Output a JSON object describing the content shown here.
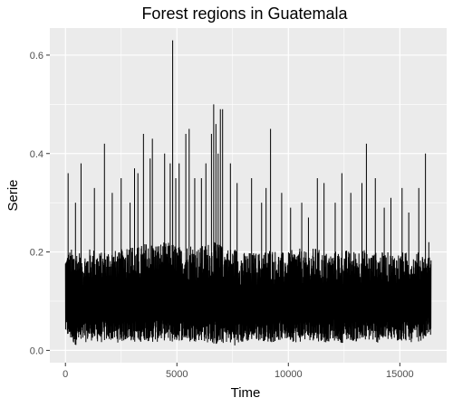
{
  "chart_data": {
    "type": "line",
    "title": "Forest regions in Guatemala",
    "xlabel": "Time",
    "ylabel": "Serie",
    "xlim": [
      -700,
      17100
    ],
    "ylim": [
      -0.025,
      0.655
    ],
    "x_ticks": [
      0,
      5000,
      10000,
      15000
    ],
    "x_tick_labels": [
      "0",
      "5000",
      "10000",
      "15000"
    ],
    "y_ticks": [
      0.0,
      0.2,
      0.4,
      0.6
    ],
    "y_tick_labels": [
      "0.0",
      "0.2",
      "0.4",
      "0.6"
    ],
    "grid": true,
    "legend": "none",
    "colors": {
      "panel": "#ebebeb",
      "grid": "#ffffff",
      "line": "#000000"
    },
    "series": [
      {
        "x_start": 1,
        "x_end": 16400,
        "band": [
          [
            1,
            0.03,
            0.2
          ],
          [
            400,
            0.01,
            0.21
          ],
          [
            800,
            0.015,
            0.2
          ],
          [
            1200,
            0.02,
            0.21
          ],
          [
            1600,
            0.015,
            0.2
          ],
          [
            2000,
            0.02,
            0.21
          ],
          [
            2400,
            0.015,
            0.2
          ],
          [
            2800,
            0.02,
            0.22
          ],
          [
            3200,
            0.015,
            0.21
          ],
          [
            3600,
            0.02,
            0.22
          ],
          [
            4000,
            0.015,
            0.22
          ],
          [
            4400,
            0.02,
            0.22
          ],
          [
            4800,
            0.015,
            0.22
          ],
          [
            5200,
            0.02,
            0.21
          ],
          [
            5600,
            0.015,
            0.22
          ],
          [
            6000,
            0.02,
            0.21
          ],
          [
            6400,
            0.015,
            0.22
          ],
          [
            6800,
            0.01,
            0.22
          ],
          [
            7200,
            0.015,
            0.21
          ],
          [
            7600,
            0.01,
            0.21
          ],
          [
            8000,
            0.015,
            0.2
          ],
          [
            8400,
            0.02,
            0.2
          ],
          [
            8800,
            0.02,
            0.2
          ],
          [
            9200,
            0.015,
            0.21
          ],
          [
            9600,
            0.02,
            0.2
          ],
          [
            10000,
            0.02,
            0.2
          ],
          [
            10400,
            0.015,
            0.21
          ],
          [
            10800,
            0.02,
            0.2
          ],
          [
            11200,
            0.02,
            0.21
          ],
          [
            11600,
            0.015,
            0.2
          ],
          [
            12000,
            0.02,
            0.2
          ],
          [
            12400,
            0.015,
            0.21
          ],
          [
            12800,
            0.02,
            0.2
          ],
          [
            13200,
            0.015,
            0.21
          ],
          [
            13600,
            0.02,
            0.2
          ],
          [
            14000,
            0.015,
            0.2
          ],
          [
            14400,
            0.02,
            0.2
          ],
          [
            14800,
            0.015,
            0.2
          ],
          [
            15200,
            0.02,
            0.2
          ],
          [
            15600,
            0.015,
            0.2
          ],
          [
            16000,
            0.02,
            0.2
          ],
          [
            16400,
            0.03,
            0.19
          ]
        ],
        "peaks": [
          [
            4810,
            0.63
          ],
          [
            6650,
            0.5
          ],
          [
            6950,
            0.49
          ],
          [
            7050,
            0.49
          ],
          [
            6750,
            0.46
          ],
          [
            6550,
            0.44
          ],
          [
            5400,
            0.44
          ],
          [
            3500,
            0.44
          ],
          [
            13500,
            0.42
          ],
          [
            9200,
            0.45
          ],
          [
            3900,
            0.43
          ],
          [
            5550,
            0.45
          ],
          [
            1750,
            0.42
          ],
          [
            16150,
            0.4
          ],
          [
            3800,
            0.39
          ],
          [
            6300,
            0.38
          ],
          [
            3100,
            0.37
          ],
          [
            4450,
            0.4
          ],
          [
            7400,
            0.38
          ],
          [
            700,
            0.38
          ],
          [
            120,
            0.36
          ],
          [
            2500,
            0.35
          ],
          [
            3250,
            0.36
          ],
          [
            4950,
            0.35
          ],
          [
            5800,
            0.35
          ],
          [
            6100,
            0.35
          ],
          [
            7700,
            0.34
          ],
          [
            8350,
            0.35
          ],
          [
            9000,
            0.33
          ],
          [
            9700,
            0.32
          ],
          [
            11300,
            0.35
          ],
          [
            12400,
            0.36
          ],
          [
            13300,
            0.34
          ],
          [
            13900,
            0.35
          ],
          [
            15100,
            0.33
          ],
          [
            15850,
            0.33
          ],
          [
            1300,
            0.33
          ],
          [
            2100,
            0.32
          ],
          [
            8800,
            0.3
          ],
          [
            10600,
            0.3
          ],
          [
            11600,
            0.34
          ],
          [
            12800,
            0.32
          ],
          [
            14600,
            0.31
          ],
          [
            450,
            0.3
          ],
          [
            2900,
            0.3
          ],
          [
            10100,
            0.29
          ],
          [
            12100,
            0.3
          ],
          [
            14300,
            0.29
          ],
          [
            15400,
            0.28
          ],
          [
            16300,
            0.22
          ],
          [
            5100,
            0.38
          ],
          [
            6850,
            0.4
          ],
          [
            4700,
            0.38
          ],
          [
            10900,
            0.27
          ]
        ]
      }
    ]
  }
}
